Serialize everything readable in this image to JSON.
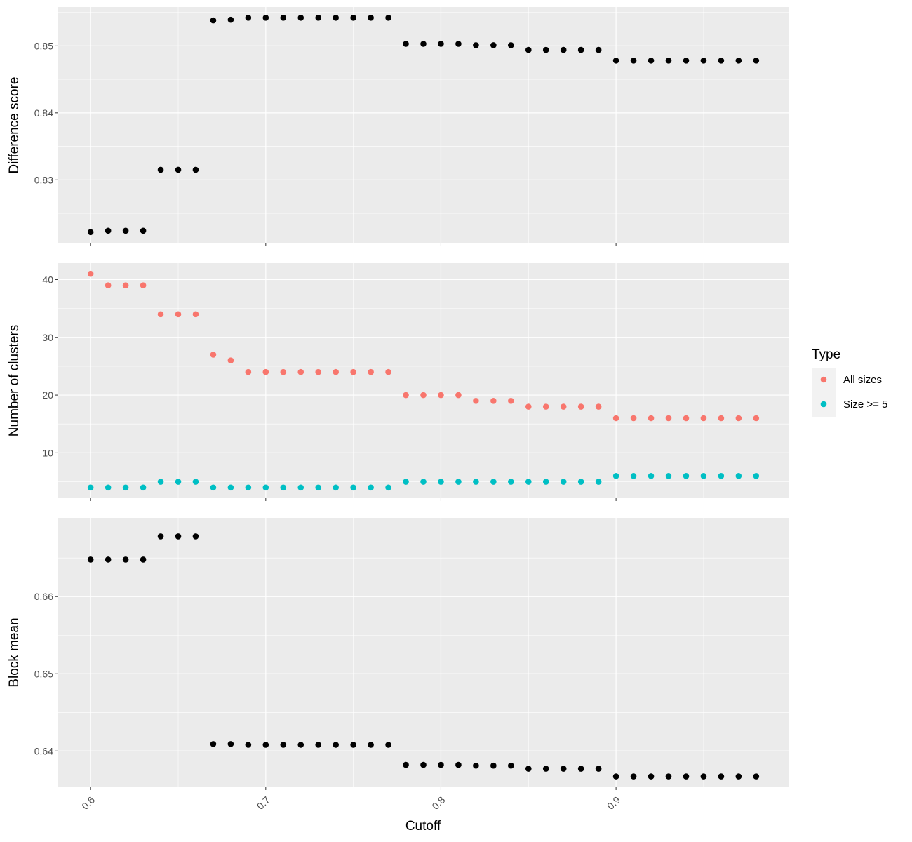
{
  "chart_data": {
    "type": "scatter",
    "x_label": "Cutoff",
    "x_ticks": [
      "0.6",
      "0.7",
      "0.8",
      "0.9"
    ],
    "x_range": [
      0.5815,
      0.9985
    ],
    "x": [
      0.6,
      0.61,
      0.62,
      0.63,
      0.64,
      0.65,
      0.66,
      0.67,
      0.68,
      0.69,
      0.7,
      0.71,
      0.72,
      0.73,
      0.74,
      0.75,
      0.76,
      0.77,
      0.78,
      0.79,
      0.8,
      0.81,
      0.82,
      0.83,
      0.84,
      0.85,
      0.86,
      0.87,
      0.88,
      0.89,
      0.9,
      0.91,
      0.92,
      0.93,
      0.94,
      0.95,
      0.96,
      0.97,
      0.98
    ],
    "panels": [
      {
        "ylabel": "Difference score",
        "y_ticks": [
          "0.83",
          "0.84",
          "0.85"
        ],
        "y_range": [
          0.8205,
          0.8558
        ],
        "series": [
          {
            "color": "#000000",
            "values": [
              0.8222,
              0.8224,
              0.8224,
              0.8224,
              0.8315,
              0.8315,
              0.8315,
              0.8538,
              0.8539,
              0.8542,
              0.8542,
              0.8542,
              0.8542,
              0.8542,
              0.8542,
              0.8542,
              0.8542,
              0.8542,
              0.8503,
              0.8503,
              0.8503,
              0.8503,
              0.8501,
              0.8501,
              0.8501,
              0.8494,
              0.8494,
              0.8494,
              0.8494,
              0.8494,
              0.8478,
              0.8478,
              0.8478,
              0.8478,
              0.8478,
              0.8478,
              0.8478,
              0.8478,
              0.8478
            ]
          }
        ]
      },
      {
        "ylabel": "Number of clusters",
        "y_ticks": [
          "10",
          "20",
          "30",
          "40"
        ],
        "y_range": [
          2.15,
          42.85
        ],
        "series": [
          {
            "name": "All sizes",
            "color": "#F8766D",
            "values": [
              41,
              39,
              39,
              39,
              34,
              34,
              34,
              27,
              26,
              24,
              24,
              24,
              24,
              24,
              24,
              24,
              24,
              24,
              20,
              20,
              20,
              20,
              19,
              19,
              19,
              18,
              18,
              18,
              18,
              18,
              16,
              16,
              16,
              16,
              16,
              16,
              16,
              16,
              16
            ]
          },
          {
            "name": "Size >= 5",
            "color": "#00BFC4",
            "values": [
              4,
              4,
              4,
              4,
              5,
              5,
              5,
              4,
              4,
              4,
              4,
              4,
              4,
              4,
              4,
              4,
              4,
              4,
              5,
              5,
              5,
              5,
              5,
              5,
              5,
              5,
              5,
              5,
              5,
              5,
              6,
              6,
              6,
              6,
              6,
              6,
              6,
              6,
              6
            ]
          }
        ]
      },
      {
        "ylabel": "Block mean",
        "y_ticks": [
          "0.64",
          "0.65",
          "0.66"
        ],
        "y_range": [
          0.6353,
          0.6702
        ],
        "series": [
          {
            "color": "#000000",
            "values": [
              0.6648,
              0.6648,
              0.6648,
              0.6648,
              0.6678,
              0.6678,
              0.6678,
              0.6409,
              0.6409,
              0.6408,
              0.6408,
              0.6408,
              0.6408,
              0.6408,
              0.6408,
              0.6408,
              0.6408,
              0.6408,
              0.6382,
              0.6382,
              0.6382,
              0.6382,
              0.6381,
              0.6381,
              0.6381,
              0.6377,
              0.6377,
              0.6377,
              0.6377,
              0.6377,
              0.6367,
              0.6367,
              0.6367,
              0.6367,
              0.6367,
              0.6367,
              0.6367,
              0.6367,
              0.6367
            ]
          }
        ]
      }
    ],
    "legend": {
      "title": "Type",
      "position": "right",
      "entries": [
        {
          "label": "All sizes",
          "color": "#F8766D"
        },
        {
          "label": "Size >= 5",
          "color": "#00BFC4"
        }
      ]
    },
    "grid": true,
    "panel_background": "#EBEBEB"
  }
}
